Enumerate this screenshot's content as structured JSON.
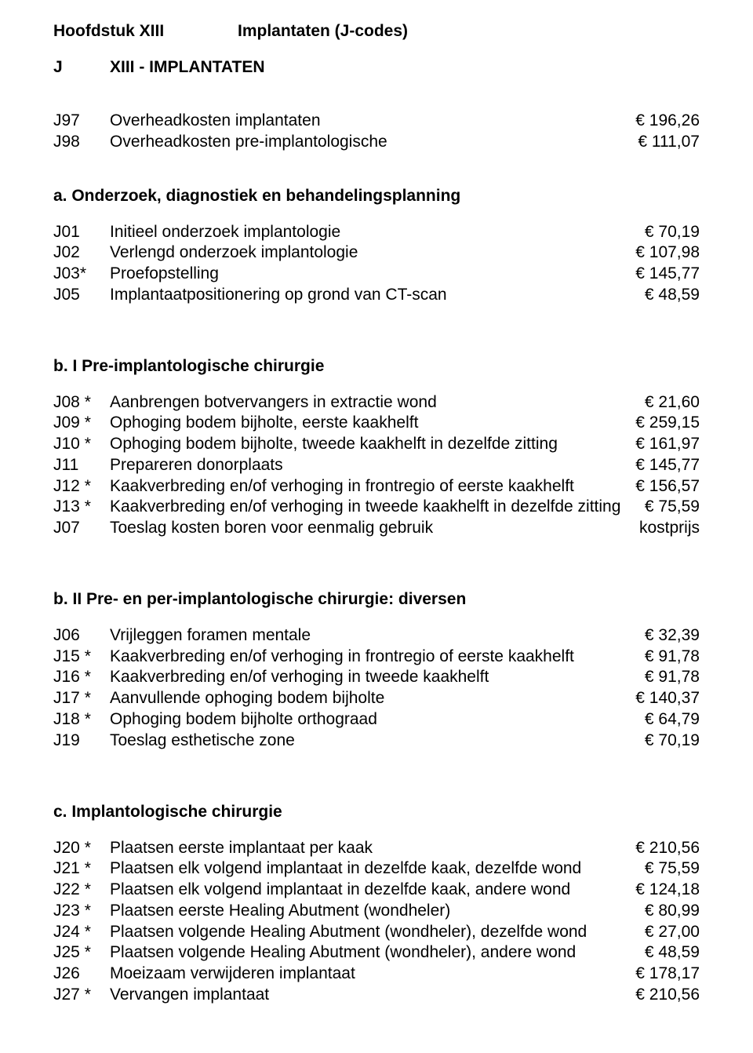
{
  "header": {
    "left": "Hoofdstuk XIII",
    "right": "Implantaten (J-codes)"
  },
  "subtitle": {
    "code": "J",
    "text": "XIII -   IMPLANTATEN"
  },
  "intro_rows": [
    {
      "code": "J97",
      "desc": "Overheadkosten implantaten",
      "price": "€ 196,26"
    },
    {
      "code": "J98",
      "desc": "Overheadkosten pre-implantologische",
      "price": "€ 111,07"
    }
  ],
  "sections": [
    {
      "heading": "a. Onderzoek, diagnostiek en behandelingsplanning",
      "rows": [
        {
          "code": "J01",
          "desc": "Initieel onderzoek implantologie",
          "price": "€ 70,19"
        },
        {
          "code": "J02",
          "desc": "Verlengd onderzoek implantologie",
          "price": "€ 107,98"
        },
        {
          "code": "J03*",
          "desc": "Proefopstelling",
          "price": "€ 145,77"
        },
        {
          "code": "J05",
          "desc": "Implantaatpositionering op grond van CT-scan",
          "price": "€ 48,59"
        }
      ]
    },
    {
      "heading": "b. I Pre-implantologische chirurgie",
      "rows": [
        {
          "code": "J08 *",
          "desc": "Aanbrengen botvervangers in extractie wond",
          "price": "€ 21,60"
        },
        {
          "code": "J09 *",
          "desc": "Ophoging bodem bijholte, eerste kaakhelft",
          "price": "€ 259,15"
        },
        {
          "code": "J10 *",
          "desc": "Ophoging bodem bijholte, tweede kaakhelft in dezelfde zitting",
          "price": "€ 161,97"
        },
        {
          "code": "J11",
          "desc": "Prepareren donorplaats",
          "price": "€ 145,77"
        },
        {
          "code": "J12 *",
          "desc": "Kaakverbreding en/of verhoging in frontregio of eerste kaakhelft",
          "price": "€ 156,57"
        },
        {
          "code": "J13 *",
          "desc": "Kaakverbreding en/of verhoging in tweede kaakhelft in dezelfde zitting",
          "price": "€ 75,59"
        },
        {
          "code": "J07",
          "desc": "Toeslag kosten boren voor eenmalig gebruik",
          "price": "kostprijs"
        }
      ]
    },
    {
      "heading": "b. II Pre- en per-implantologische chirurgie: diversen",
      "rows": [
        {
          "code": "J06",
          "desc": "Vrijleggen foramen mentale",
          "price": "€ 32,39"
        },
        {
          "code": "J15 *",
          "desc": "Kaakverbreding en/of verhoging in frontregio of eerste kaakhelft",
          "price": "€ 91,78"
        },
        {
          "code": "J16 *",
          "desc": "Kaakverbreding en/of verhoging in tweede kaakhelft",
          "price": "€ 91,78"
        },
        {
          "code": "J17 *",
          "desc": "Aanvullende ophoging bodem bijholte",
          "price": "€ 140,37"
        },
        {
          "code": "J18 *",
          "desc": "Ophoging bodem bijholte orthograad",
          "price": "€ 64,79"
        },
        {
          "code": "J19",
          "desc": "Toeslag esthetische zone",
          "price": "€ 70,19"
        }
      ]
    },
    {
      "heading": "c. Implantologische chirurgie",
      "rows": [
        {
          "code": "J20 *",
          "desc": "Plaatsen eerste implantaat per kaak",
          "price": "€ 210,56"
        },
        {
          "code": "J21 *",
          "desc": "Plaatsen elk volgend implantaat in dezelfde kaak, dezelfde wond",
          "price": "€ 75,59"
        },
        {
          "code": "J22 *",
          "desc": "Plaatsen elk volgend implantaat in dezelfde kaak, andere wond",
          "price": "€ 124,18"
        },
        {
          "code": "J23 *",
          "desc": "Plaatsen eerste Healing Abutment (wondheler)",
          "price": "€ 80,99"
        },
        {
          "code": "J24 *",
          "desc": "Plaatsen volgende Healing Abutment (wondheler), dezelfde wond",
          "price": "€ 27,00"
        },
        {
          "code": "J25 *",
          "desc": "Plaatsen volgende Healing Abutment (wondheler), andere wond",
          "price": "€ 48,59"
        },
        {
          "code": "J26",
          "desc": "Moeizaam verwijderen implantaat",
          "price": "€ 178,17"
        },
        {
          "code": "J27 *",
          "desc": "Vervangen implantaat",
          "price": "€ 210,56"
        }
      ]
    }
  ]
}
